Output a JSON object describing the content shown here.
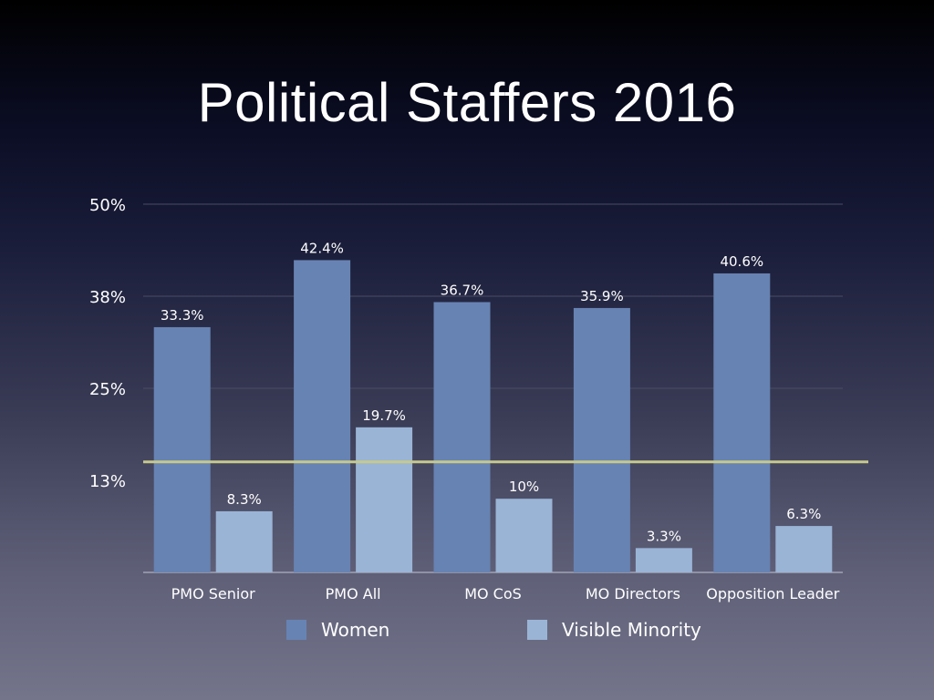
{
  "title": "Political Staffers 2016",
  "chart_data": {
    "type": "bar",
    "title": "Political Staffers 2016",
    "categories": [
      "PMO Senior",
      "PMO All",
      "MO CoS",
      "MO Directors",
      "Opposition Leader"
    ],
    "series": [
      {
        "name": "Women",
        "color": "#6783b3",
        "values": [
          33.3,
          42.4,
          36.7,
          35.9,
          40.6
        ],
        "labels": [
          "33.3%",
          "42.4%",
          "36.7%",
          "35.9%",
          "40.6%"
        ]
      },
      {
        "name": "Visible Minority",
        "color": "#9ab4d6",
        "values": [
          8.3,
          19.7,
          10,
          3.3,
          6.3
        ],
        "labels": [
          "8.3%",
          "19.7%",
          "10%",
          "3.3%",
          "6.3%"
        ]
      }
    ],
    "ylim": [
      0,
      50
    ],
    "yticks": [
      {
        "value": 12.5,
        "label": "13%"
      },
      {
        "value": 25,
        "label": "25%"
      },
      {
        "value": 37.5,
        "label": "38%"
      },
      {
        "value": 50,
        "label": "50%"
      }
    ],
    "reference_line": {
      "value": 15,
      "color": "#c7c98c"
    },
    "grid": true,
    "legend_position": "bottom"
  }
}
